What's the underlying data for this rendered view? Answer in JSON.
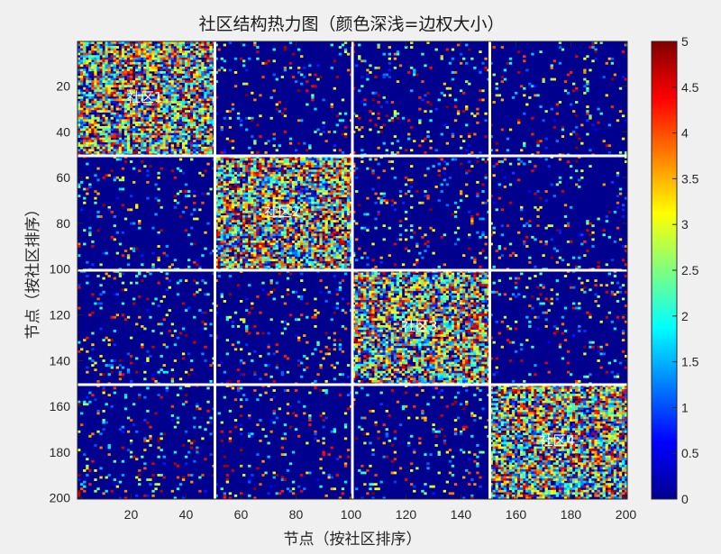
{
  "chart_data": {
    "type": "heatmap",
    "title": "社区结构热力图（颜色深浅=边权大小）",
    "xlabel": "节点（按社区排序）",
    "ylabel": "节点（按社区排序）",
    "n_nodes": 200,
    "community_boundaries": [
      50,
      100,
      150
    ],
    "xlim": [
      0.5,
      200.5
    ],
    "ylim": [
      0.5,
      200.5
    ],
    "x_ticks": [
      20,
      40,
      60,
      80,
      100,
      120,
      140,
      160,
      180,
      200
    ],
    "y_ticks": [
      20,
      40,
      60,
      80,
      100,
      120,
      140,
      160,
      180,
      200
    ],
    "colormap": "jet",
    "clim": [
      0,
      5
    ],
    "colorbar_ticks": [
      0,
      0.5,
      1,
      1.5,
      2,
      2.5,
      3,
      3.5,
      4,
      4.5,
      5
    ],
    "annotations": [
      {
        "text": "社区1",
        "x": 25,
        "y": 25
      },
      {
        "text": "社区2",
        "x": 75,
        "y": 75
      },
      {
        "text": "社区3",
        "x": 125,
        "y": 125
      },
      {
        "text": "社区4",
        "x": 175,
        "y": 175
      }
    ],
    "intra_density": 0.8,
    "inter_density": 0.08,
    "weight_range": [
      0,
      5
    ],
    "background_color": "#00008f",
    "boundary_color": "#ffffff"
  }
}
